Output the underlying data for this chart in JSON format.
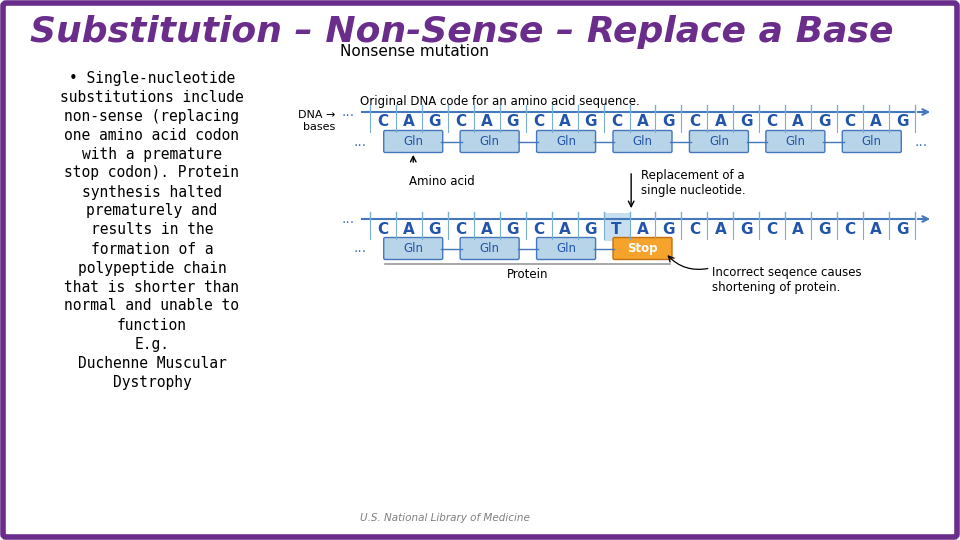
{
  "title": "Substitution – Non-Sense – Replace a Base",
  "title_color": "#6B2D8B",
  "border_color": "#6B2D8B",
  "bg_color": "#ffffff",
  "left_text_lines": [
    "• Single-nucleotide",
    "substitutions include",
    "non-sense (replacing",
    "one amino acid codon",
    "with a premature",
    "stop codon). Protein",
    "synthesis halted",
    "prematurely and",
    "results in the",
    "formation of a",
    "polypeptide chain",
    "that is shorter than",
    "normal and unable to",
    "function",
    "E.g.",
    "Duchenne Muscular",
    "Dystrophy"
  ],
  "diagram_title": "Nonsense mutation",
  "original_label": "Original DNA code for an amino acid sequence.",
  "original_bases": "C A G C A G C A G C A G C A G C A G C A G",
  "mutated_bases": "C A G C A G C A G T A G C A G C A G C A G",
  "amino_acids_orig": [
    "Gln",
    "Gln",
    "Gln",
    "Gln",
    "Gln",
    "Gln",
    "Gln"
  ],
  "amino_acids_mut": [
    "Gln",
    "Gln",
    "Gln",
    "Stop"
  ],
  "aa_box_color": "#b8d4e8",
  "stop_box_color": "#f5a32a",
  "aa_border_color": "#4477bb",
  "aa_text_color": "#2255aa",
  "stop_text_color": "#ffffff",
  "dna_bar_color": "#4477bb",
  "dna_thin_color": "#7aafd4",
  "amino_acid_label": "Amino acid",
  "replacement_label": "Replacement of a\nsingle nucleotide.",
  "protein_label": "Protein",
  "incorrect_label": "Incorrect seqence causes\nshortening of protein.",
  "source_label": "U.S. National Library of Medicine",
  "font_color": "#000000"
}
